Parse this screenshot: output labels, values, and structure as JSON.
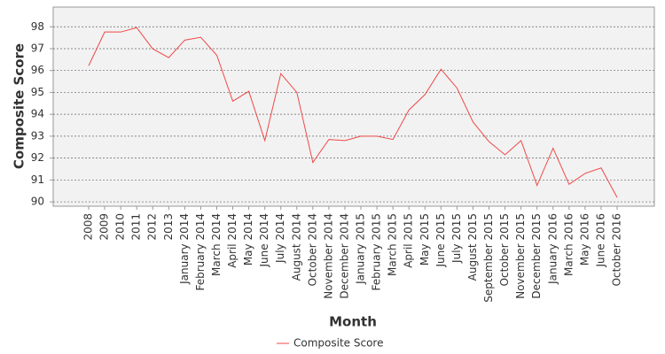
{
  "chart_data": {
    "type": "line",
    "x_label": "Month",
    "y_label": "Composite Score",
    "categories": [
      "2008",
      "2009",
      "2010",
      "2011",
      "2012",
      "2013",
      "January 2014",
      "February 2014",
      "March 2014",
      "April 2014",
      "May 2014",
      "June 2014",
      "July 2014",
      "August 2014",
      "October 2014",
      "November 2014",
      "December 2014",
      "January 2015",
      "February 2015",
      "March 2015",
      "April 2015",
      "May 2015",
      "June 2015",
      "July 2015",
      "August 2015",
      "September 2015",
      "October 2015",
      "November 2015",
      "December 2015",
      "January 2016",
      "March 2016",
      "May 2016",
      "June 2016",
      "October 2016"
    ],
    "series": [
      {
        "name": "Composite Score",
        "color": "#f04848",
        "values": [
          96.22,
          97.76,
          97.76,
          97.96,
          96.99,
          96.59,
          97.39,
          97.52,
          96.7,
          94.6,
          95.05,
          92.8,
          95.86,
          95.0,
          91.8,
          92.85,
          92.8,
          93.0,
          93.0,
          92.85,
          94.2,
          94.9,
          96.06,
          95.2,
          93.65,
          92.75,
          92.15,
          92.8,
          90.75,
          92.45,
          90.8,
          91.3,
          91.55,
          90.2
        ]
      }
    ],
    "ylim": [
      89.8,
      98.9
    ],
    "yticks": [
      90,
      91,
      92,
      93,
      94,
      95,
      96,
      97,
      98
    ],
    "grid": true
  }
}
